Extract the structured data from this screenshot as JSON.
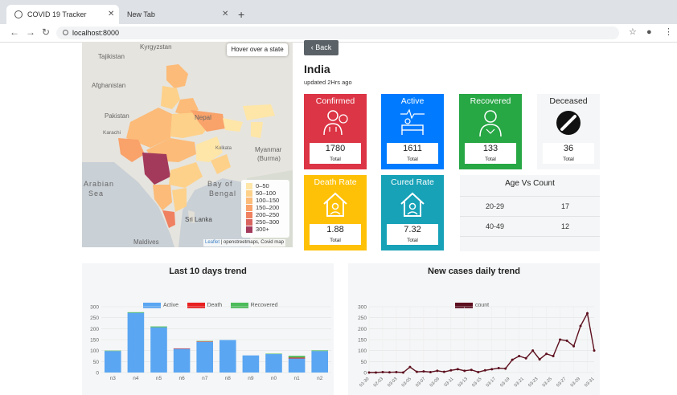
{
  "browser": {
    "tabs": [
      {
        "title": "COVID 19 Tracker",
        "active": true
      },
      {
        "title": "New Tab",
        "active": false
      }
    ],
    "new_tab": "+",
    "url": "localhost:8000"
  },
  "map": {
    "hover_hint": "Hover over a state",
    "place_labels": [
      "Kyrgyzstan",
      "Tajikistan",
      "Afghanistan",
      "Pakistan",
      "Nepal",
      "Karachi",
      "Myanmar",
      "(Burma)",
      "Arabian",
      "Sea",
      "Bay of",
      "Bengal",
      "Sri Lanka",
      "Maldives",
      "Kolkata"
    ],
    "legend": [
      {
        "label": "0–50",
        "color": "#fee6a8"
      },
      {
        "label": "50–100",
        "color": "#fdd18a"
      },
      {
        "label": "100–150",
        "color": "#fcbb78"
      },
      {
        "label": "150–200",
        "color": "#f9a26a"
      },
      {
        "label": "200–250",
        "color": "#ef8060"
      },
      {
        "label": "250–300",
        "color": "#d9645f"
      },
      {
        "label": "300+",
        "color": "#a33a5c"
      }
    ],
    "attribution_link": "Leaflet",
    "attribution_text": " | openstreetmaps, Covid map"
  },
  "panel": {
    "back_label": "Back",
    "country": "India",
    "updated": "updated 2Hrs ago",
    "total_label": "Total",
    "cards": {
      "confirmed": {
        "title": "Confirmed",
        "value": "1780",
        "color": "#dc3545"
      },
      "active": {
        "title": "Active",
        "value": "1611",
        "color": "#007bff"
      },
      "recovered": {
        "title": "Recovered",
        "value": "133",
        "color": "#28a745"
      },
      "deceased": {
        "title": "Deceased",
        "value": "36",
        "color": "#f5f6f7"
      },
      "death_rate": {
        "title": "Death Rate",
        "value": "1.88",
        "color": "#ffc107"
      },
      "cured_rate": {
        "title": "Cured Rate",
        "value": "7.32",
        "color": "#17a2b8"
      }
    },
    "age_vs_count": {
      "title": "Age Vs Count",
      "rows": [
        {
          "age": "20-29",
          "count": "17"
        },
        {
          "age": "40-49",
          "count": "12"
        }
      ]
    }
  },
  "chart_data": [
    {
      "type": "bar",
      "title": "Last 10 days trend",
      "categories": [
        "n3",
        "n4",
        "n5",
        "n6",
        "n7",
        "n8",
        "n9",
        "n0",
        "n1",
        "n2"
      ],
      "stacked": true,
      "series": [
        {
          "name": "Active",
          "color": "#5aa6f2",
          "values": [
            98,
            272,
            206,
            108,
            140,
            148,
            78,
            84,
            64,
            98
          ]
        },
        {
          "name": "Death",
          "color": "#e8201f",
          "values": [
            0,
            0,
            0,
            2,
            2,
            0,
            0,
            0,
            4,
            0
          ]
        },
        {
          "name": "Recovered",
          "color": "#4cbb5a",
          "values": [
            2,
            3,
            4,
            0,
            2,
            0,
            0,
            2,
            8,
            3
          ]
        }
      ],
      "ylim": [
        0,
        300
      ],
      "yticks": [
        0,
        50,
        100,
        150,
        200,
        250,
        300
      ]
    },
    {
      "type": "line",
      "title": "New cases daily trend",
      "series": [
        {
          "name": "count",
          "color": "#5c0f1e",
          "values": [
            0,
            0,
            2,
            1,
            2,
            0,
            25,
            3,
            5,
            2,
            8,
            3,
            10,
            15,
            8,
            12,
            2,
            10,
            15,
            20,
            18,
            58,
            75,
            65,
            100,
            60,
            85,
            75,
            150,
            145,
            120,
            212,
            270,
            100
          ]
        }
      ],
      "x_tick_labels": [
        "01-30",
        "02-03",
        "03-03",
        "03-05",
        "03-07",
        "03-09",
        "03-11",
        "03-13",
        "03-15",
        "03-17",
        "03-19",
        "03-21",
        "03-23",
        "03-25",
        "03-27",
        "03-29",
        "03-31"
      ],
      "ylim": [
        0,
        300
      ],
      "yticks": [
        0,
        50,
        100,
        150,
        200,
        250,
        300
      ],
      "grid": true
    }
  ]
}
